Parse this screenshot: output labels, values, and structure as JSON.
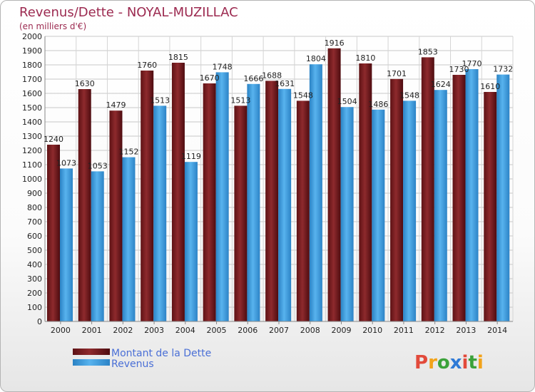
{
  "chart_data": {
    "type": "bar",
    "title": "Revenus/Dette - NOYAL-MUZILLAC",
    "subtitle": "(en milliers d'€)",
    "xlabel": "",
    "ylabel": "",
    "ylim": [
      0,
      2000
    ],
    "ytick_step": 100,
    "grid": true,
    "legend_position": "bottom-left",
    "categories": [
      "2000",
      "2001",
      "2002",
      "2003",
      "2004",
      "2005",
      "2006",
      "2007",
      "2008",
      "2009",
      "2010",
      "2011",
      "2012",
      "2013",
      "2014"
    ],
    "series": [
      {
        "name": "Montant de la Dette",
        "color": "#7a1f22",
        "values": [
          1240,
          1630,
          1479,
          1760,
          1815,
          1670,
          1513,
          1688,
          1548,
          1916,
          1810,
          1701,
          1853,
          1730,
          1610
        ]
      },
      {
        "name": "Revenus",
        "color": "#3f9ee0",
        "values": [
          1073,
          1053,
          1152,
          1513,
          1119,
          1748,
          1666,
          1631,
          1804,
          1504,
          1486,
          1548,
          1624,
          1770,
          1732
        ]
      }
    ]
  },
  "logo": {
    "text": "Proxiti",
    "letter_colors": [
      "#e24a3b",
      "#f2a31a",
      "#3ba23a",
      "#2f7ad6",
      "#e24a3b",
      "#3ba23a",
      "#f2a31a"
    ]
  }
}
